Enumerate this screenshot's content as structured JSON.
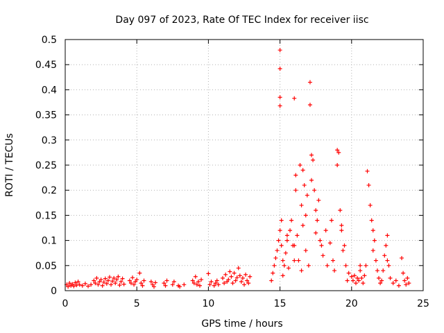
{
  "chart_data": {
    "type": "scatter",
    "title": "Day 097 of 2023, Rate Of TEC Index for receiver iisc",
    "xlabel": "GPS time / hours",
    "ylabel": "ROTI / TECUs",
    "xlim": [
      0,
      25
    ],
    "ylim": [
      0,
      0.5
    ],
    "grid": true,
    "marker": "+",
    "color": "#ff0000",
    "x_ticks": [
      {
        "value": 0,
        "label": "0"
      },
      {
        "value": 5,
        "label": "5"
      },
      {
        "value": 10,
        "label": "10"
      },
      {
        "value": 15,
        "label": "15"
      },
      {
        "value": 20,
        "label": "20"
      },
      {
        "value": 25,
        "label": "25"
      }
    ],
    "y_ticks": [
      {
        "value": 0,
        "label": "0"
      },
      {
        "value": 0.05,
        "label": "0.05"
      },
      {
        "value": 0.1,
        "label": "0.1"
      },
      {
        "value": 0.15,
        "label": "0.15"
      },
      {
        "value": 0.2,
        "label": "0.2"
      },
      {
        "value": 0.25,
        "label": "0.25"
      },
      {
        "value": 0.3,
        "label": "0.3"
      },
      {
        "value": 0.35,
        "label": "0.35"
      },
      {
        "value": 0.4,
        "label": "0.4"
      },
      {
        "value": 0.45,
        "label": "0.45"
      },
      {
        "value": 0.5,
        "label": "0.5"
      }
    ],
    "series": [
      {
        "name": "ROTI",
        "points": [
          [
            0.1,
            0.012
          ],
          [
            0.2,
            0.008
          ],
          [
            0.3,
            0.015
          ],
          [
            0.4,
            0.01
          ],
          [
            0.5,
            0.013
          ],
          [
            0.6,
            0.009
          ],
          [
            0.7,
            0.016
          ],
          [
            0.8,
            0.011
          ],
          [
            0.9,
            0.018
          ],
          [
            1.0,
            0.012
          ],
          [
            1.2,
            0.01
          ],
          [
            1.4,
            0.014
          ],
          [
            1.6,
            0.009
          ],
          [
            1.8,
            0.012
          ],
          [
            2.0,
            0.02
          ],
          [
            2.1,
            0.015
          ],
          [
            2.2,
            0.025
          ],
          [
            2.3,
            0.012
          ],
          [
            2.4,
            0.018
          ],
          [
            2.5,
            0.022
          ],
          [
            2.6,
            0.01
          ],
          [
            2.7,
            0.017
          ],
          [
            2.8,
            0.024
          ],
          [
            2.9,
            0.014
          ],
          [
            3.0,
            0.02
          ],
          [
            3.1,
            0.027
          ],
          [
            3.2,
            0.012
          ],
          [
            3.3,
            0.019
          ],
          [
            3.4,
            0.025
          ],
          [
            3.5,
            0.015
          ],
          [
            3.6,
            0.022
          ],
          [
            3.7,
            0.028
          ],
          [
            3.8,
            0.011
          ],
          [
            3.9,
            0.018
          ],
          [
            4.0,
            0.024
          ],
          [
            4.1,
            0.013
          ],
          [
            4.5,
            0.02
          ],
          [
            4.6,
            0.015
          ],
          [
            4.7,
            0.026
          ],
          [
            4.8,
            0.012
          ],
          [
            4.9,
            0.018
          ],
          [
            5.0,
            0.022
          ],
          [
            5.2,
            0.035
          ],
          [
            5.3,
            0.015
          ],
          [
            5.4,
            0.01
          ],
          [
            5.5,
            0.02
          ],
          [
            6.0,
            0.018
          ],
          [
            6.1,
            0.012
          ],
          [
            6.2,
            0.008
          ],
          [
            6.3,
            0.016
          ],
          [
            6.9,
            0.015
          ],
          [
            7.0,
            0.01
          ],
          [
            7.1,
            0.02
          ],
          [
            7.5,
            0.012
          ],
          [
            7.6,
            0.018
          ],
          [
            7.9,
            0.01
          ],
          [
            8.0,
            0.008
          ],
          [
            8.3,
            0.012
          ],
          [
            8.9,
            0.02
          ],
          [
            9.0,
            0.015
          ],
          [
            9.1,
            0.028
          ],
          [
            9.2,
            0.012
          ],
          [
            9.3,
            0.018
          ],
          [
            9.4,
            0.01
          ],
          [
            9.5,
            0.022
          ],
          [
            10.0,
            0.034
          ],
          [
            10.1,
            0.012
          ],
          [
            10.2,
            0.018
          ],
          [
            10.4,
            0.01
          ],
          [
            10.5,
            0.015
          ],
          [
            10.6,
            0.02
          ],
          [
            10.7,
            0.012
          ],
          [
            11.0,
            0.025
          ],
          [
            11.1,
            0.015
          ],
          [
            11.2,
            0.032
          ],
          [
            11.3,
            0.018
          ],
          [
            11.4,
            0.022
          ],
          [
            11.5,
            0.038
          ],
          [
            11.6,
            0.028
          ],
          [
            11.7,
            0.015
          ],
          [
            11.8,
            0.035
          ],
          [
            11.9,
            0.02
          ],
          [
            12.0,
            0.026
          ],
          [
            12.1,
            0.045
          ],
          [
            12.2,
            0.03
          ],
          [
            12.3,
            0.018
          ],
          [
            12.4,
            0.025
          ],
          [
            12.5,
            0.012
          ],
          [
            12.6,
            0.032
          ],
          [
            12.7,
            0.02
          ],
          [
            12.8,
            0.015
          ],
          [
            12.9,
            0.028
          ],
          [
            14.4,
            0.02
          ],
          [
            14.5,
            0.035
          ],
          [
            14.6,
            0.05
          ],
          [
            14.7,
            0.065
          ],
          [
            14.8,
            0.08
          ],
          [
            14.9,
            0.1
          ],
          [
            15.0,
            0.12
          ],
          [
            15.0,
            0.385
          ],
          [
            15.0,
            0.368
          ],
          [
            15.0,
            0.479
          ],
          [
            15.0,
            0.442
          ],
          [
            15.1,
            0.14
          ],
          [
            15.1,
            0.09
          ],
          [
            15.2,
            0.06
          ],
          [
            15.2,
            0.03
          ],
          [
            15.3,
            0.05
          ],
          [
            15.4,
            0.075
          ],
          [
            15.5,
            0.1
          ],
          [
            15.6,
            0.045
          ],
          [
            15.7,
            0.12
          ],
          [
            15.8,
            0.14
          ],
          [
            15.9,
            0.09
          ],
          [
            16.0,
            0.06
          ],
          [
            16.0,
            0.383
          ],
          [
            16.1,
            0.2
          ],
          [
            16.1,
            0.23
          ],
          [
            16.2,
            0.11
          ],
          [
            16.3,
            0.06
          ],
          [
            16.4,
            0.25
          ],
          [
            16.5,
            0.04
          ],
          [
            16.5,
            0.17
          ],
          [
            16.6,
            0.24
          ],
          [
            16.7,
            0.21
          ],
          [
            16.8,
            0.15
          ],
          [
            16.8,
            0.08
          ],
          [
            16.9,
            0.19
          ],
          [
            17.0,
            0.05
          ],
          [
            17.1,
            0.415
          ],
          [
            17.1,
            0.37
          ],
          [
            17.2,
            0.27
          ],
          [
            17.3,
            0.26
          ],
          [
            17.4,
            0.2
          ],
          [
            17.5,
            0.16
          ],
          [
            17.6,
            0.14
          ],
          [
            17.7,
            0.18
          ],
          [
            17.8,
            0.1
          ],
          [
            17.9,
            0.09
          ],
          [
            18.0,
            0.07
          ],
          [
            18.2,
            0.12
          ],
          [
            18.3,
            0.05
          ],
          [
            18.5,
            0.095
          ],
          [
            18.7,
            0.06
          ],
          [
            18.8,
            0.04
          ],
          [
            19.0,
            0.25
          ],
          [
            19.0,
            0.28
          ],
          [
            19.1,
            0.275
          ],
          [
            19.2,
            0.16
          ],
          [
            19.3,
            0.13
          ],
          [
            19.4,
            0.08
          ],
          [
            19.5,
            0.09
          ],
          [
            19.6,
            0.05
          ],
          [
            19.7,
            0.02
          ],
          [
            19.8,
            0.035
          ],
          [
            20.0,
            0.028
          ],
          [
            20.1,
            0.02
          ],
          [
            20.2,
            0.03
          ],
          [
            20.3,
            0.015
          ],
          [
            20.4,
            0.025
          ],
          [
            20.5,
            0.02
          ],
          [
            20.6,
            0.04
          ],
          [
            20.7,
            0.025
          ],
          [
            20.8,
            0.015
          ],
          [
            20.9,
            0.03
          ],
          [
            21.0,
            0.05
          ],
          [
            21.1,
            0.238
          ],
          [
            21.2,
            0.21
          ],
          [
            21.3,
            0.17
          ],
          [
            21.4,
            0.14
          ],
          [
            21.5,
            0.12
          ],
          [
            21.6,
            0.1
          ],
          [
            21.7,
            0.06
          ],
          [
            21.8,
            0.04
          ],
          [
            21.9,
            0.025
          ],
          [
            22.0,
            0.015
          ],
          [
            22.1,
            0.02
          ],
          [
            22.2,
            0.04
          ],
          [
            22.3,
            0.07
          ],
          [
            22.4,
            0.09
          ],
          [
            22.5,
            0.11
          ],
          [
            22.6,
            0.05
          ],
          [
            22.7,
            0.025
          ],
          [
            22.9,
            0.015
          ],
          [
            23.1,
            0.02
          ],
          [
            23.3,
            0.01
          ],
          [
            23.5,
            0.065
          ],
          [
            23.6,
            0.035
          ],
          [
            23.7,
            0.02
          ],
          [
            23.8,
            0.012
          ],
          [
            23.9,
            0.025
          ],
          [
            24.0,
            0.015
          ],
          [
            16.6,
            0.13
          ],
          [
            17.5,
            0.115
          ],
          [
            16.0,
            0.09
          ],
          [
            15.5,
            0.11
          ],
          [
            17.2,
            0.22
          ],
          [
            18.6,
            0.14
          ],
          [
            19.3,
            0.12
          ],
          [
            20.6,
            0.05
          ],
          [
            21.5,
            0.08
          ],
          [
            22.5,
            0.06
          ]
        ]
      }
    ]
  }
}
